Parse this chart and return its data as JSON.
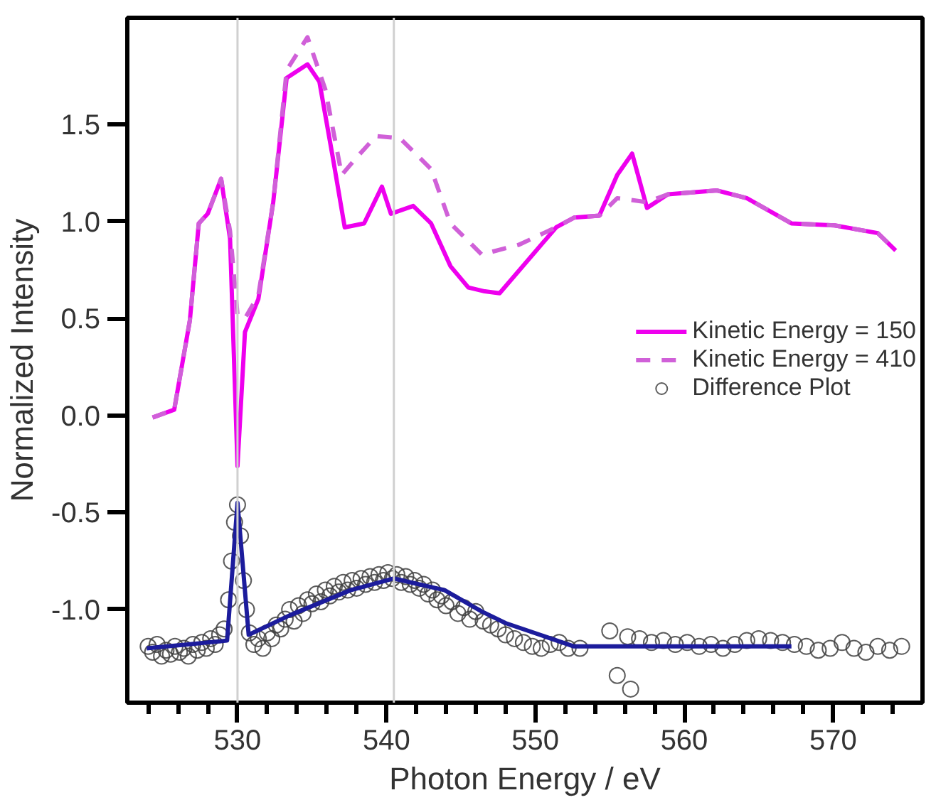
{
  "chart_data": {
    "type": "line",
    "xlabel": "Photon Energy / eV",
    "ylabel": "Normalized Intensity",
    "xlim": [
      522.6,
      576
    ],
    "ylim": [
      -1.48,
      2.05
    ],
    "xticks": [
      {
        "value": 524,
        "label": null
      },
      {
        "value": 526,
        "label": null
      },
      {
        "value": 528,
        "label": null
      },
      530,
      {
        "value": 532,
        "label": null
      },
      {
        "value": 534,
        "label": null
      },
      {
        "value": 536,
        "label": null
      },
      {
        "value": 538,
        "label": null
      },
      540,
      {
        "value": 542,
        "label": null
      },
      {
        "value": 544,
        "label": null
      },
      {
        "value": 546,
        "label": null
      },
      {
        "value": 548,
        "label": null
      },
      550,
      {
        "value": 552,
        "label": null
      },
      {
        "value": 554,
        "label": null
      },
      {
        "value": 556,
        "label": null
      },
      {
        "value": 558,
        "label": null
      },
      560,
      {
        "value": 562,
        "label": null
      },
      {
        "value": 564,
        "label": null
      },
      {
        "value": 566,
        "label": null
      },
      {
        "value": 568,
        "label": null
      },
      570,
      {
        "value": 572,
        "label": null
      },
      {
        "value": 574,
        "label": null
      }
    ],
    "yticks": [
      {
        "value": -1,
        "label": "-1.0"
      },
      -0.5,
      {
        "value": 0,
        "label": "0.0"
      },
      0.5,
      {
        "value": 1,
        "label": "1.0"
      },
      1.5
    ],
    "grid": false,
    "legend": "right",
    "ref_lines": [
      {
        "axis": "x",
        "value": 530,
        "color": "#d0d0d0"
      },
      {
        "axis": "x",
        "value": 540.5,
        "color": "#d0d0d0"
      }
    ],
    "series": [
      {
        "name": "Kinetic Energy = 150",
        "color": "#ee00ee",
        "line_style": "solid",
        "x": [
          524.3,
          525.75,
          526.8,
          527.4,
          528.0,
          528.9,
          529.5,
          530.0,
          530.5,
          531.4,
          532.4,
          533.3,
          534.7,
          535.5,
          536.4,
          537.2,
          538.5,
          539.7,
          540.3,
          541.8,
          543.0,
          544.3,
          545.5,
          546.6,
          547.6,
          551.4,
          552.6,
          554.3,
          555.5,
          556.5,
          557.5,
          558.9,
          562.2,
          564.2,
          567.2,
          570.1,
          573.0,
          574.2
        ],
        "values": [
          -0.01,
          0.03,
          0.49,
          0.99,
          1.04,
          1.22,
          0.91,
          -0.26,
          0.43,
          0.6,
          1.1,
          1.74,
          1.81,
          1.72,
          1.33,
          0.97,
          0.99,
          1.18,
          1.04,
          1.08,
          0.99,
          0.77,
          0.66,
          0.64,
          0.63,
          0.97,
          1.02,
          1.03,
          1.24,
          1.35,
          1.07,
          1.14,
          1.16,
          1.12,
          0.99,
          0.98,
          0.94,
          0.85
        ]
      },
      {
        "name": "Kinetic Energy = 410",
        "color": "#d060d8",
        "line_style": "dashed",
        "x": [
          524.3,
          525.75,
          526.8,
          527.4,
          528.0,
          528.9,
          529.5,
          530.0,
          530.5,
          531.4,
          532.4,
          533.3,
          534.7,
          535.9,
          537.0,
          538.0,
          539.3,
          540.9,
          543.0,
          544.3,
          546.4,
          548.9,
          551.4,
          552.6,
          554.3,
          555.5,
          557.5,
          558.9,
          562.2,
          564.2,
          567.2,
          570.1,
          573.0,
          574.2
        ],
        "values": [
          -0.01,
          0.03,
          0.49,
          0.99,
          1.04,
          1.22,
          0.95,
          0.52,
          0.5,
          0.62,
          1.1,
          1.78,
          1.95,
          1.68,
          1.24,
          1.33,
          1.44,
          1.43,
          1.27,
          0.99,
          0.83,
          0.88,
          0.97,
          1.02,
          1.03,
          1.12,
          1.1,
          1.14,
          1.16,
          1.12,
          0.99,
          0.98,
          0.94,
          0.85
        ]
      },
      {
        "name": "Difference Plot",
        "type": "scatter",
        "marker": "circle",
        "color": "#404040",
        "x": [
          524.0,
          524.3,
          524.6,
          524.9,
          525.2,
          525.5,
          525.8,
          526.1,
          526.4,
          526.7,
          527.0,
          527.3,
          527.6,
          527.9,
          528.2,
          528.5,
          528.8,
          529.1,
          529.4,
          529.6,
          529.8,
          530.0,
          530.2,
          530.4,
          530.6,
          530.8,
          531.1,
          531.4,
          531.7,
          532.0,
          532.3,
          532.6,
          532.9,
          533.2,
          533.5,
          533.8,
          534.1,
          534.4,
          534.7,
          535.0,
          535.3,
          535.6,
          535.9,
          536.2,
          536.5,
          536.8,
          537.1,
          537.4,
          537.7,
          538.0,
          538.3,
          538.6,
          538.9,
          539.2,
          539.5,
          539.8,
          540.1,
          540.4,
          540.7,
          541.0,
          541.3,
          541.6,
          541.9,
          542.2,
          542.5,
          542.8,
          543.1,
          543.4,
          543.7,
          544.0,
          544.4,
          544.8,
          545.2,
          545.6,
          546.0,
          546.5,
          547.0,
          547.5,
          548.0,
          548.6,
          549.2,
          549.8,
          550.4,
          551.0,
          551.6,
          552.2,
          553.0,
          555.0,
          555.5,
          556.4,
          556.2,
          557.0,
          557.8,
          558.6,
          559.4,
          560.2,
          561.0,
          561.8,
          562.6,
          563.4,
          564.2,
          565.0,
          565.8,
          566.6,
          567.4,
          568.2,
          569.0,
          569.8,
          570.6,
          571.4,
          572.2,
          573.0,
          573.8,
          574.6
        ],
        "values": [
          -1.19,
          -1.22,
          -1.18,
          -1.24,
          -1.21,
          -1.23,
          -1.19,
          -1.22,
          -1.2,
          -1.24,
          -1.18,
          -1.21,
          -1.17,
          -1.2,
          -1.15,
          -1.18,
          -1.13,
          -1.1,
          -0.95,
          -0.75,
          -0.55,
          -0.46,
          -0.62,
          -0.85,
          -1.0,
          -1.12,
          -1.18,
          -1.15,
          -1.2,
          -1.12,
          -1.15,
          -1.08,
          -1.1,
          -1.05,
          -1.0,
          -1.06,
          -0.98,
          -1.02,
          -0.95,
          -0.97,
          -0.92,
          -0.96,
          -0.9,
          -0.93,
          -0.88,
          -0.91,
          -0.86,
          -0.9,
          -0.85,
          -0.89,
          -0.84,
          -0.87,
          -0.83,
          -0.86,
          -0.82,
          -0.85,
          -0.81,
          -0.84,
          -0.82,
          -0.86,
          -0.83,
          -0.87,
          -0.85,
          -0.89,
          -0.87,
          -0.92,
          -0.9,
          -0.95,
          -0.93,
          -0.98,
          -0.96,
          -1.02,
          -0.99,
          -1.05,
          -1.01,
          -1.06,
          -1.08,
          -1.1,
          -1.13,
          -1.15,
          -1.17,
          -1.19,
          -1.2,
          -1.18,
          -1.17,
          -1.2,
          -1.2,
          -1.11,
          -1.34,
          -1.41,
          -1.14,
          -1.15,
          -1.17,
          -1.16,
          -1.18,
          -1.17,
          -1.19,
          -1.18,
          -1.2,
          -1.18,
          -1.16,
          -1.15,
          -1.16,
          -1.17,
          -1.18,
          -1.19,
          -1.21,
          -1.2,
          -1.17,
          -1.2,
          -1.22,
          -1.19,
          -1.21,
          -1.19
        ]
      },
      {
        "color": "#1c1c9c",
        "line_style": "solid",
        "x": [
          523.9,
          529.3,
          530.0,
          530.75,
          533.5,
          537.6,
          540.5,
          543.9,
          546.4,
          548.0,
          552.6,
          567.2
        ],
        "values": [
          -1.2,
          -1.16,
          -0.45,
          -1.13,
          -1.03,
          -0.9,
          -0.84,
          -0.9,
          -1.01,
          -1.07,
          -1.19,
          -1.19
        ]
      }
    ]
  }
}
